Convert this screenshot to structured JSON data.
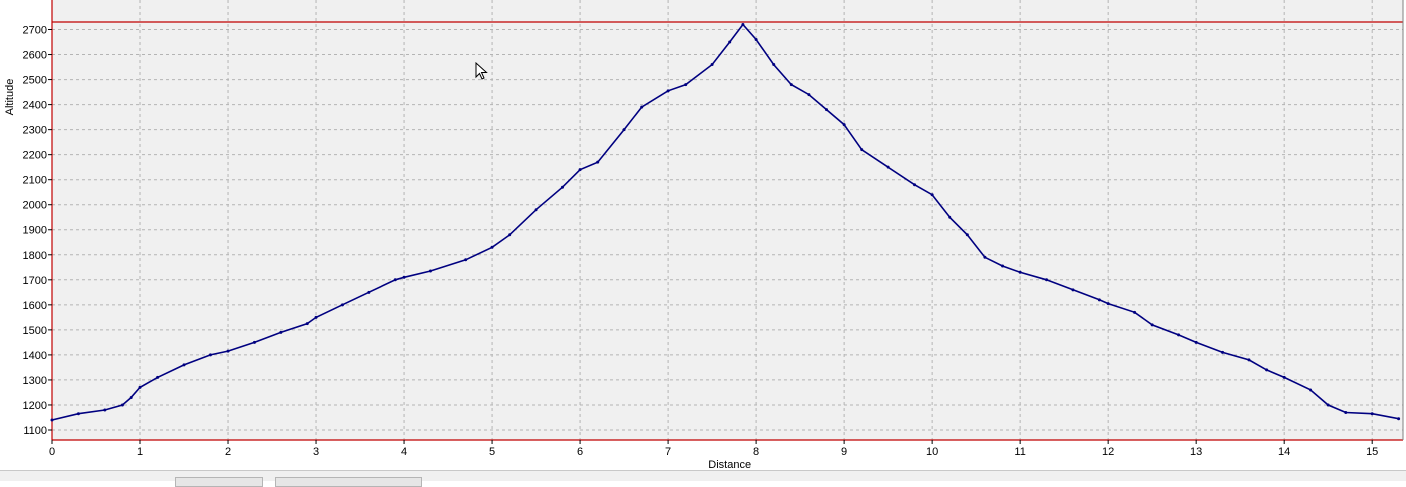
{
  "chart_data": {
    "type": "line",
    "title": "",
    "xlabel": "Distance",
    "ylabel": "Altitude",
    "xlim": [
      0,
      15.35
    ],
    "ylim": [
      1060,
      2730
    ],
    "x_ticks": [
      0,
      1,
      2,
      3,
      4,
      5,
      6,
      7,
      8,
      9,
      10,
      11,
      12,
      13,
      14,
      15
    ],
    "y_ticks": [
      1100,
      1200,
      1300,
      1400,
      1500,
      1600,
      1700,
      1800,
      1900,
      2000,
      2100,
      2200,
      2300,
      2400,
      2500,
      2600,
      2700
    ],
    "grid": true,
    "legend": "none",
    "series": [
      {
        "x": [
          0,
          0.3,
          0.6,
          0.8,
          0.9,
          1.0,
          1.2,
          1.5,
          1.8,
          2.0,
          2.3,
          2.6,
          2.9,
          3.0,
          3.3,
          3.6,
          3.9,
          4.0,
          4.3,
          4.7,
          5.0,
          5.2,
          5.5,
          5.8,
          6.0,
          6.2,
          6.5,
          6.7,
          7.0,
          7.2,
          7.5,
          7.7,
          7.85,
          8.0,
          8.2,
          8.4,
          8.6,
          8.8,
          9.0,
          9.2,
          9.5,
          9.8,
          10.0,
          10.2,
          10.4,
          10.6,
          10.8,
          11.0,
          11.3,
          11.6,
          11.9,
          12.0,
          12.3,
          12.5,
          12.8,
          13.0,
          13.3,
          13.6,
          13.8,
          14.0,
          14.3,
          14.5,
          14.7,
          15.0,
          15.3
        ],
        "y": [
          1140,
          1165,
          1180,
          1200,
          1230,
          1270,
          1310,
          1360,
          1400,
          1415,
          1450,
          1490,
          1525,
          1550,
          1600,
          1650,
          1700,
          1710,
          1735,
          1780,
          1830,
          1880,
          1980,
          2070,
          2140,
          2170,
          2300,
          2390,
          2455,
          2480,
          2560,
          2650,
          2720,
          2660,
          2560,
          2480,
          2440,
          2380,
          2320,
          2220,
          2150,
          2080,
          2040,
          1950,
          1880,
          1790,
          1755,
          1730,
          1700,
          1660,
          1620,
          1605,
          1570,
          1520,
          1480,
          1450,
          1410,
          1380,
          1340,
          1310,
          1260,
          1200,
          1170,
          1165,
          1145
        ]
      }
    ],
    "colors": {
      "line": "#000080",
      "frame": "#c00000",
      "plot_bg": "#f0f0f0",
      "grid": "#b4b4b4"
    }
  }
}
